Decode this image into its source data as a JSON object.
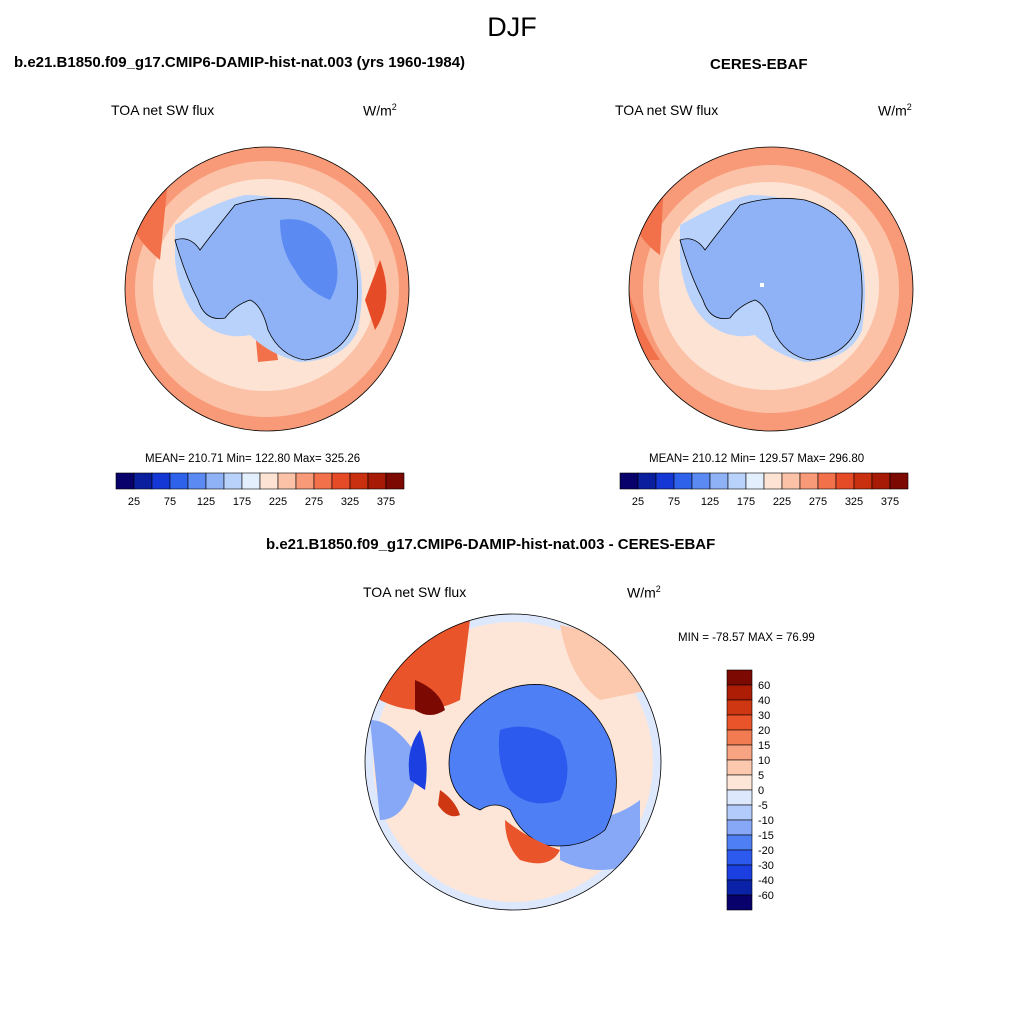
{
  "season_title": "DJF",
  "colors": {
    "abs_levels": [
      "#08006b",
      "#0a1f9e",
      "#1537d6",
      "#2f62ea",
      "#5a8af2",
      "#8fb2f7",
      "#b9d2fb",
      "#e4effd",
      "#fde3d3",
      "#fcc2a8",
      "#f89a78",
      "#f2714b",
      "#e64b27",
      "#c8300f",
      "#a71a05",
      "#7c0a02"
    ],
    "diff_levels": [
      "#08006b",
      "#0a22a8",
      "#1b3fe0",
      "#2d5aee",
      "#4f7ff4",
      "#86a8f7",
      "#b3cbfb",
      "#dde8fd",
      "#fde6d8",
      "#fcc8ae",
      "#f8a381",
      "#f37b52",
      "#ea542b",
      "#cf3612",
      "#ad1d05",
      "#7c0a02"
    ]
  },
  "panels": [
    {
      "title": "b.e21.B1850.f09_g17.CMIP6-DAMIP-hist-nat.003 (yrs 1960-1984)",
      "variable": "TOA net SW flux",
      "units": "W/m",
      "units_sup": "2",
      "stats": "MEAN= 210.71  Min= 122.80  Max= 325.26",
      "colorbar_ticks": [
        "25",
        "75",
        "125",
        "175",
        "225",
        "275",
        "325",
        "375"
      ]
    },
    {
      "title": "CERES-EBAF",
      "variable": "TOA net SW flux",
      "units": "W/m",
      "units_sup": "2",
      "stats": "MEAN= 210.12  Min= 129.57  Max= 296.80",
      "colorbar_ticks": [
        "25",
        "75",
        "125",
        "175",
        "225",
        "275",
        "325",
        "375"
      ]
    }
  ],
  "diff_panel": {
    "title": "b.e21.B1850.f09_g17.CMIP6-DAMIP-hist-nat.003 - CERES-EBAF",
    "variable": "TOA net SW flux",
    "units": "W/m",
    "units_sup": "2",
    "stats": "MIN = -78.57 MAX =  76.99",
    "colorbar_ticks": [
      "60",
      "40",
      "30",
      "20",
      "15",
      "10",
      "5",
      "0",
      "-5",
      "-10",
      "-15",
      "-20",
      "-30",
      "-40",
      "-60"
    ]
  }
}
